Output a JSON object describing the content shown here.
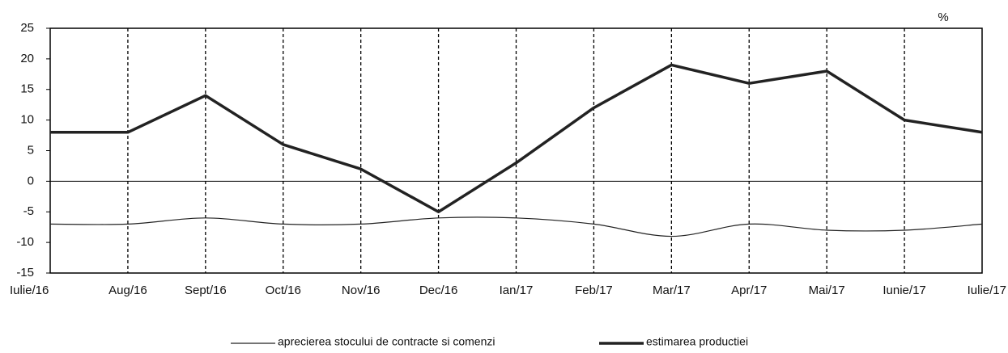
{
  "chart_data": {
    "type": "line",
    "unit": "%",
    "categories": [
      "Iulie/16",
      "Aug/16",
      "Sept/16",
      "Oct/16",
      "Nov/16",
      "Dec/16",
      "Ian/17",
      "Feb/17",
      "Mar/17",
      "Apr/17",
      "Mai/17",
      "Iunie/17",
      "Iulie/17"
    ],
    "series": [
      {
        "name": "aprecierea stocului de contracte si comenzi",
        "color": "#222222",
        "width": 1.2,
        "smooth": true,
        "values": [
          -7,
          -7,
          -6,
          -7,
          -7,
          -6,
          -6,
          -7,
          -9,
          -7,
          -8,
          -8,
          -7
        ]
      },
      {
        "name": "estimarea productiei",
        "color": "#222222",
        "width": 3.5,
        "smooth": false,
        "values": [
          8,
          8,
          14,
          6,
          2,
          -5,
          3,
          12,
          19,
          16,
          18,
          10,
          8
        ]
      }
    ],
    "ylim": [
      -15,
      25
    ],
    "yticks": [
      -15,
      -10,
      -5,
      0,
      5,
      10,
      15,
      20,
      25
    ],
    "xgrid": true
  }
}
